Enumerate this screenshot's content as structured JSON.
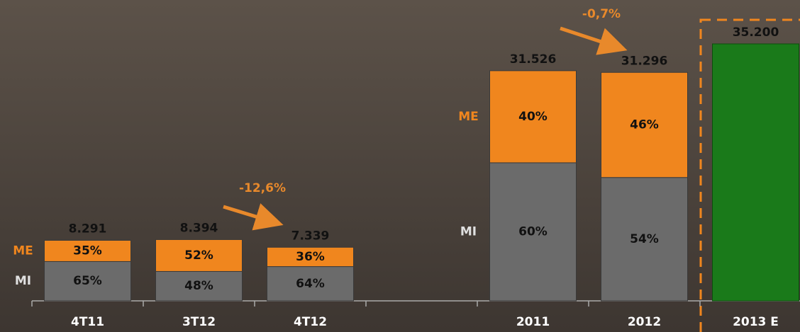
{
  "chart_data": {
    "type": "stacked-bar",
    "categories": [
      "4T11",
      "3T12",
      "4T12",
      null,
      "2011",
      "2012",
      "2013 E"
    ],
    "series": [
      {
        "name": "MI",
        "color": "#6b6b6b",
        "values": [
          65,
          48,
          64,
          null,
          60,
          54,
          null
        ],
        "value_labels": [
          "65%",
          "48%",
          "64%",
          null,
          "60%",
          "54%",
          null
        ]
      },
      {
        "name": "ME",
        "color": "#f0861e",
        "values": [
          35,
          52,
          36,
          null,
          40,
          46,
          null
        ],
        "value_labels": [
          "35%",
          "52%",
          "36%",
          null,
          "40%",
          "46%",
          null
        ]
      }
    ],
    "totals": {
      "values": [
        8291,
        8394,
        7339,
        null,
        31526,
        31296,
        35200
      ],
      "value_labels": [
        "8.291",
        "8.394",
        "7.339",
        null,
        "31.526",
        "31.296",
        "35.200"
      ],
      "color": "#1a7a1a"
    },
    "annotations": [
      "-12,6%",
      "-0,7%"
    ]
  }
}
